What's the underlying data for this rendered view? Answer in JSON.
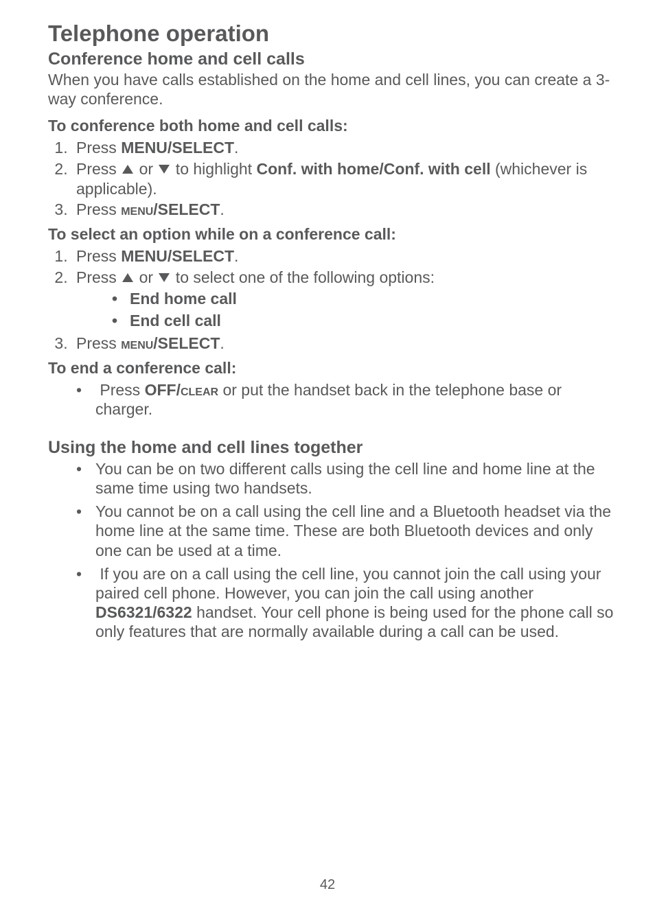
{
  "title": "Telephone operation",
  "section1": {
    "heading": "Conference home and cell calls",
    "intro": "When you have calls established on the home and cell lines, you can create a 3-way conference.",
    "sub1": {
      "title": "To conference both home and cell calls:",
      "step1_pre": "Press ",
      "step1_bold": "MENU/SELECT",
      "step1_post": ".",
      "step2_pre": "Press ",
      "step2_mid": " or ",
      "step2_post1": " to highlight ",
      "step2_bold": "Conf. with home/Conf. with cell",
      "step2_post2": " (whichever is applicable).",
      "step3_pre": "Press ",
      "step3_sc": "menu",
      "step3_bold": "/SELECT",
      "step3_post": "."
    },
    "sub2": {
      "title": "To select an option while on a conference call:",
      "step1_pre": "Press ",
      "step1_bold": "MENU/SELECT",
      "step1_post": ".",
      "step2_pre": "Press ",
      "step2_mid": " or ",
      "step2_post": " to select one of the following options:",
      "opt1": "End home call",
      "opt2": "End cell call",
      "step3_pre": "Press ",
      "step3_sc": "menu",
      "step3_bold": "/SELECT",
      "step3_post": "."
    },
    "sub3": {
      "title": "To end a conference call:",
      "item_pre": "Press ",
      "item_bold1": "OFF/",
      "item_sc": "clear",
      "item_post": " or put the handset back in the telephone base or charger."
    }
  },
  "section2": {
    "heading": "Using the home and cell lines together",
    "b1": "You can be on two different calls using the cell line and home line at the same time using two handsets.",
    "b2": "You cannot be on a call using the cell line and a Bluetooth headset via the home line at the same time. These are both Bluetooth devices and only one can be used at a time.",
    "b3_pre": "If you are on a call using the cell line, you cannot join the call using your paired cell phone. However, you can join the call using another ",
    "b3_bold": "DS6321/6322",
    "b3_post": " handset. Your cell phone is being used for the phone call so only features that are normally available during a call can be used."
  },
  "pageNumber": "42"
}
